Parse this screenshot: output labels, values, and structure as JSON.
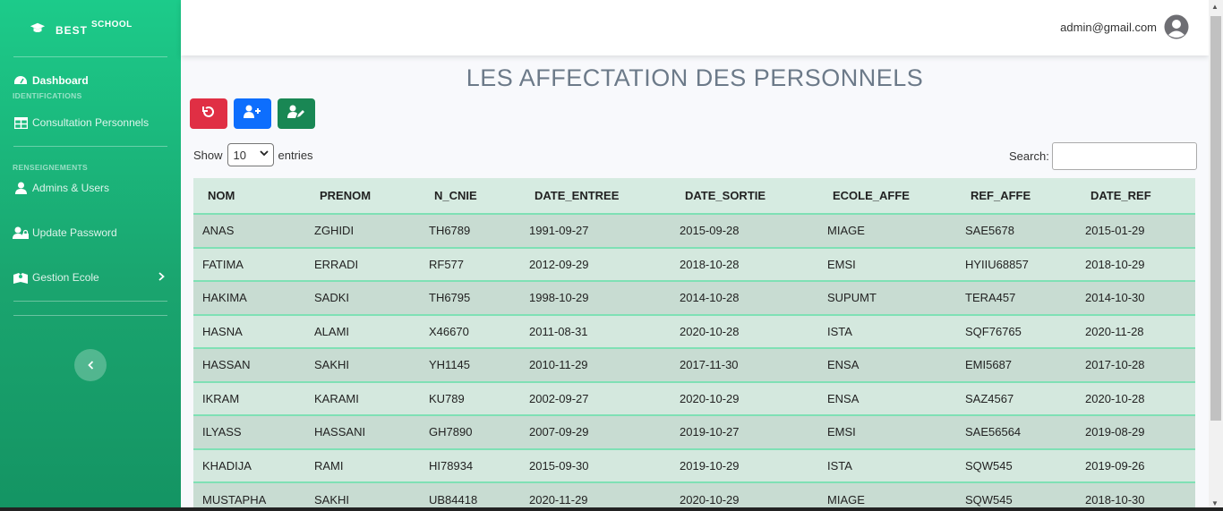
{
  "brand": {
    "name": "BEST",
    "suffix": "SCHOOL"
  },
  "sidebar": {
    "dashboard": "Dashboard",
    "section1": "IDENTIFICATIONS",
    "consultation": "Consultation Personnels",
    "section2": "RENSEIGNEMENTS",
    "admins": "Admins & Users",
    "update_password": "Update Password",
    "gestion_ecole": "Gestion Ecole"
  },
  "topbar": {
    "user_email": "admin@gmail.com"
  },
  "page": {
    "title": "LES AFFECTATION DES PERSONNELS"
  },
  "controls": {
    "show_label": "Show",
    "entries_value": "10",
    "entries_label": "entries",
    "search_label": "Search:"
  },
  "table": {
    "columns": [
      "NOM",
      "PRENOM",
      "N_CNIE",
      "DATE_ENTREE",
      "DATE_SORTIE",
      "ECOLE_AFFE",
      "REF_AFFE",
      "DATE_REF"
    ],
    "rows": [
      [
        "ANAS",
        "ZGHIDI",
        "TH6789",
        "1991-09-27",
        "2015-09-28",
        "MIAGE",
        "SAE5678",
        "2015-01-29"
      ],
      [
        "FATIMA",
        "ERRADI",
        "RF577",
        "2012-09-29",
        "2018-10-28",
        "EMSI",
        "HYIIU68857",
        "2018-10-29"
      ],
      [
        "HAKIMA",
        "SADKI",
        "TH6795",
        "1998-10-29",
        "2014-10-28",
        "SUPUMT",
        "TERA457",
        "2014-10-30"
      ],
      [
        "HASNA",
        "ALAMI",
        "X46670",
        "2011-08-31",
        "2020-10-28",
        "ISTA",
        "SQF76765",
        "2020-11-28"
      ],
      [
        "HASSAN",
        "SAKHI",
        "YH1145",
        "2010-11-29",
        "2017-11-30",
        "ENSA",
        "EMI5687",
        "2017-10-28"
      ],
      [
        "IKRAM",
        "KARAMI",
        "KU789",
        "2002-09-27",
        "2020-10-29",
        "ENSA",
        "SAZ4567",
        "2020-10-28"
      ],
      [
        "ILYASS",
        "HASSANI",
        "GH7890",
        "2007-09-29",
        "2019-10-27",
        "EMSI",
        "SAE56564",
        "2019-08-29"
      ],
      [
        "KHADIJA",
        "RAMI",
        "HI78934",
        "2015-09-30",
        "2019-10-29",
        "ISTA",
        "SQW545",
        "2019-09-26"
      ],
      [
        "MUSTAPHA",
        "SAKHI",
        "UB84418",
        "2020-11-29",
        "2020-10-29",
        "MIAGE",
        "SQW545",
        "2018-10-30"
      ]
    ]
  },
  "colors": {
    "sidebar": "#1ccb8a",
    "danger": "#e02f44",
    "primary": "#0d6efd",
    "success": "#198754"
  }
}
